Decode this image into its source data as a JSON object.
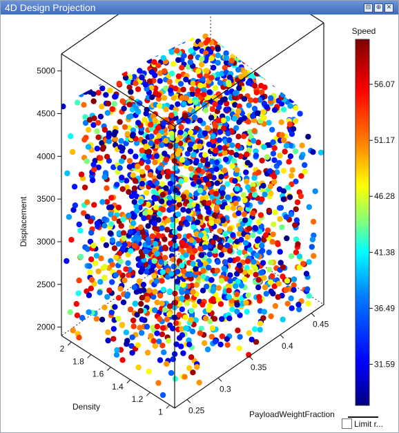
{
  "window": {
    "title": "4D Design Projection"
  },
  "titlebar_buttons": [
    {
      "icon": "pin-icon",
      "glyph": "⊟"
    },
    {
      "icon": "float-icon",
      "glyph": "⊕"
    },
    {
      "icon": "close-icon",
      "glyph": "✕"
    }
  ],
  "colorbar": {
    "title": "Speed",
    "ticks": [
      "56.07",
      "51.17",
      "46.28",
      "41.38",
      "36.49",
      "31.59"
    ]
  },
  "limit_control": {
    "label": "Limit r..."
  },
  "chart_data": {
    "type": "scatter",
    "title": "",
    "projection": "3d",
    "axes": {
      "z": {
        "label": "Displacement",
        "ticks": [
          2000,
          2500,
          3000,
          3500,
          4000,
          4500,
          5000
        ],
        "range": [
          1900,
          5200
        ]
      },
      "x": {
        "label": "Density",
        "ticks": [
          1,
          1.2,
          1.4,
          1.6,
          1.8,
          2
        ],
        "range": [
          0.95,
          2.1
        ]
      },
      "y": {
        "label": "PayloadWeightFraction",
        "ticks": [
          0.25,
          0.3,
          0.35,
          0.4,
          0.45
        ],
        "range": [
          0.23,
          0.47
        ]
      }
    },
    "color_variable": "Speed",
    "color_range": [
      28,
      60
    ],
    "colormap": [
      "#00007f",
      "#0000ff",
      "#007fff",
      "#00ffff",
      "#7fff7f",
      "#ffff00",
      "#ff7f00",
      "#ff0000",
      "#7f0000"
    ],
    "point_count_note": "dense uniform cloud of points filling the cube"
  }
}
